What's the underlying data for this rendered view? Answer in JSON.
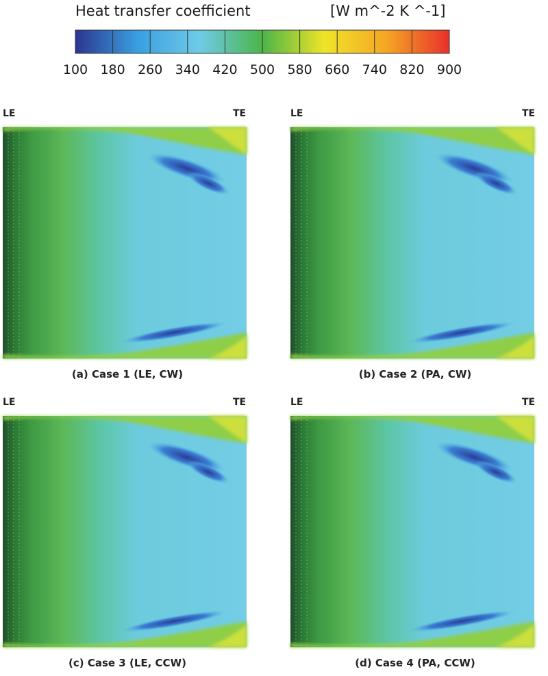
{
  "legend": {
    "title": "Heat transfer coefficient",
    "units": "[W m^-2 K ^-1]",
    "ticks": [
      "100",
      "180",
      "260",
      "340",
      "420",
      "500",
      "580",
      "660",
      "740",
      "820",
      "900"
    ]
  },
  "panels": [
    {
      "edge_left": "LE",
      "edge_right": "TE",
      "caption": "(a) Case 1 (LE, CW)"
    },
    {
      "edge_left": "LE",
      "edge_right": "TE",
      "caption": "(b) Case 2 (PA, CW)"
    },
    {
      "edge_left": "LE",
      "edge_right": "TE",
      "caption": "(c) Case 3 (LE, CCW)"
    },
    {
      "edge_left": "LE",
      "edge_right": "TE",
      "caption": "(d) Case 4 (PA, CCW)"
    }
  ],
  "chart_data": {
    "type": "heatmap",
    "title": "Heat transfer coefficient",
    "colorbar_label": "[W m^-2 K ^-1]",
    "range": [
      100,
      900
    ],
    "levels": [
      100,
      180,
      260,
      340,
      420,
      500,
      580,
      660,
      740,
      820,
      900
    ],
    "level_colors": [
      "#2f3f9e",
      "#2d62c4",
      "#3aa3e2",
      "#5cc7e0",
      "#5cc6a6",
      "#4ab54e",
      "#67bd3c",
      "#a3d23a",
      "#e6e530",
      "#f3a52a",
      "#e8452d"
    ],
    "colormap": [
      "#2c3590",
      "#3a9fe0",
      "#6ecbe8",
      "#4bb548",
      "#f0e428",
      "#f5a524",
      "#e8302a"
    ],
    "panels": [
      "(a) Case 1 (LE, CW)",
      "(b) Case 2 (PA, CW)",
      "(c) Case 3 (LE, CCW)",
      "(d) Case 4 (PA, CCW)"
    ]
  }
}
